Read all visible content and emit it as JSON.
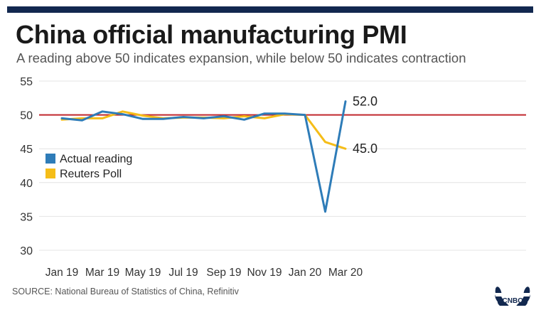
{
  "title": "China official manufacturing PMI",
  "subtitle": "A reading above 50 indicates expansion, while below 50 indicates contraction",
  "source": "SOURCE: National Bureau of Statistics of China, Refinitiv",
  "logo_text": "CNBC",
  "colors": {
    "top_bar": "#12284f",
    "actual": "#2e7cb8",
    "poll": "#f5bd18",
    "reference": "#c0272d",
    "grid": "#e4e4e4"
  },
  "chart_data": {
    "type": "line",
    "title": "China official manufacturing PMI",
    "xlabel": "",
    "ylabel": "",
    "ylim": [
      30,
      55
    ],
    "grid": true,
    "legend_placement": "left",
    "reference_line": 50,
    "x": [
      "Jan 19",
      "Feb 19",
      "Mar 19",
      "Apr 19",
      "May 19",
      "Jun 19",
      "Jul 19",
      "Aug 19",
      "Sep 19",
      "Oct 19",
      "Nov 19",
      "Dec 19",
      "Jan 20",
      "Feb 20",
      "Mar 20"
    ],
    "tick_labels": [
      "Jan 19",
      "Mar 19",
      "May 19",
      "Jul 19",
      "Sep 19",
      "Nov 19",
      "Jan 20",
      "Mar 20"
    ],
    "y_ticks": [
      30,
      35,
      40,
      45,
      50,
      55
    ],
    "series": [
      {
        "name": "Actual reading",
        "color": "#2e7cb8",
        "values": [
          49.5,
          49.2,
          50.5,
          50.1,
          49.4,
          49.4,
          49.7,
          49.5,
          49.8,
          49.3,
          50.2,
          50.2,
          50.0,
          35.7,
          52.0
        ],
        "end_label": "52.0"
      },
      {
        "name": "Reuters Poll",
        "color": "#f5bd18",
        "values": [
          49.3,
          49.5,
          49.5,
          50.5,
          49.9,
          49.5,
          49.6,
          49.6,
          49.5,
          49.8,
          49.5,
          50.1,
          50.0,
          46.0,
          45.0
        ],
        "end_label": "45.0"
      }
    ]
  }
}
